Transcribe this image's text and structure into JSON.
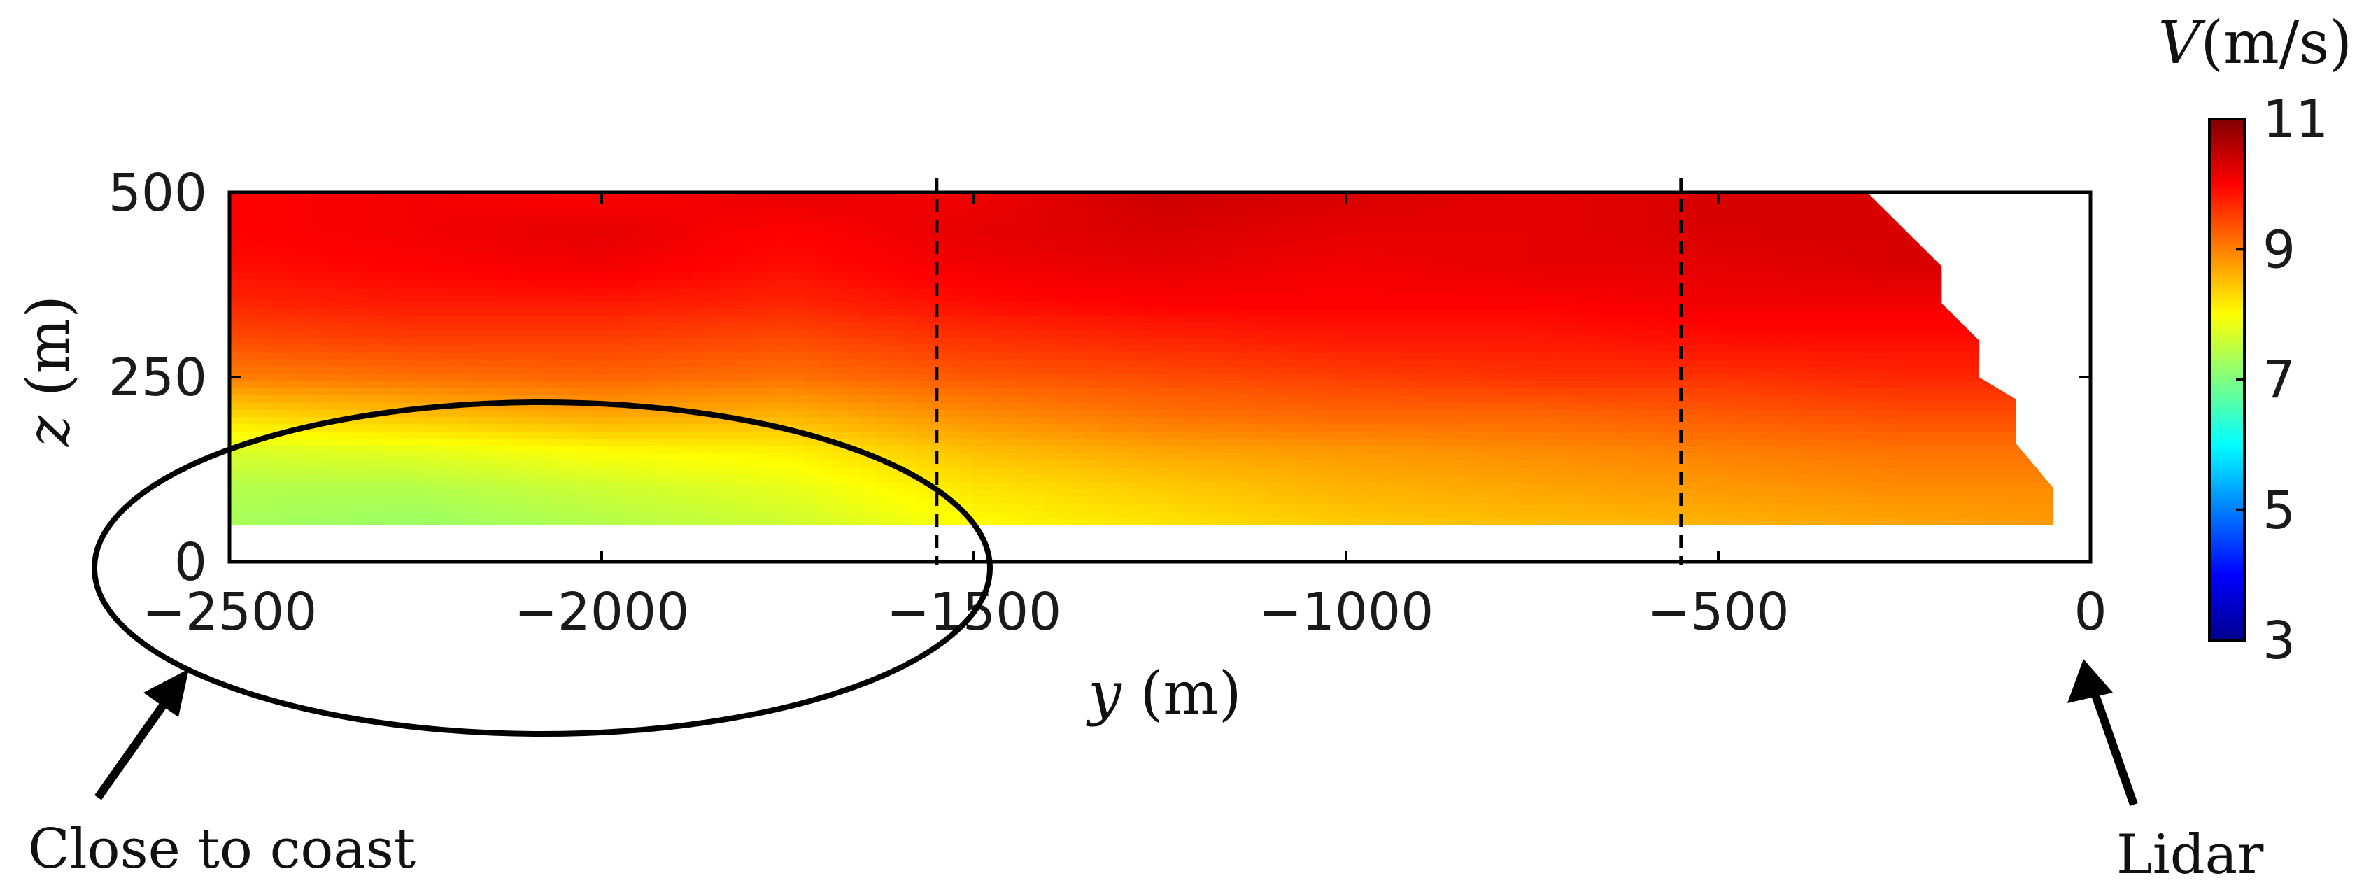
{
  "chart_data": {
    "type": "heatmap",
    "title": "",
    "xlabel": {
      "var": "y",
      "unit": " (m)"
    },
    "ylabel": {
      "var": "z",
      "unit": " (m)"
    },
    "xlim": [
      -2500,
      0
    ],
    "ylim": [
      0,
      500
    ],
    "x_ticks": [
      "-2500",
      "-2000",
      "-1500",
      "-1000",
      "-500",
      "0"
    ],
    "x_tick_values": [
      -2500,
      -2000,
      -1500,
      -1000,
      -500,
      0
    ],
    "y_ticks": [
      "0",
      "250",
      "500"
    ],
    "y_tick_values": [
      0,
      250,
      500
    ],
    "colorbar": {
      "label": {
        "var": "V",
        "unit": "(m/s)"
      },
      "range": [
        3,
        11
      ],
      "ticks": [
        "3",
        "5",
        "7",
        "9",
        "11"
      ],
      "tick_values": [
        3,
        5,
        7,
        9,
        11
      ],
      "colormap": "jet"
    },
    "data_extent": {
      "y_min": -2500,
      "z_min": 50,
      "z_max": 500
    },
    "data_right_boundary": [
      {
        "z": 500,
        "y": -300
      },
      {
        "z": 400,
        "y": -200
      },
      {
        "z": 350,
        "y": -200
      },
      {
        "z": 300,
        "y": -150
      },
      {
        "z": 250,
        "y": -150
      },
      {
        "z": 220,
        "y": -100
      },
      {
        "z": 160,
        "y": -100
      },
      {
        "z": 100,
        "y": -50
      },
      {
        "z": 50,
        "y": -50
      }
    ],
    "z_levels": [
      50,
      100,
      150,
      200,
      250,
      300,
      350,
      400,
      450,
      500
    ],
    "y_nodes": [
      -2500,
      -2250,
      -2000,
      -1750,
      -1500,
      -1250,
      -1000,
      -750,
      -500,
      -250,
      -50
    ],
    "velocity_grid": [
      [
        7.3,
        7.2,
        7.4,
        7.6,
        8.0,
        8.2,
        8.4,
        8.5,
        8.6,
        8.7,
        8.8
      ],
      [
        7.4,
        7.4,
        7.6,
        7.8,
        8.2,
        8.4,
        8.6,
        8.7,
        8.8,
        8.9,
        8.9
      ],
      [
        7.7,
        7.8,
        8.0,
        8.1,
        8.5,
        8.7,
        8.8,
        8.9,
        9.0,
        9.1,
        9.1
      ],
      [
        8.3,
        8.5,
        8.7,
        8.6,
        8.9,
        9.1,
        9.2,
        9.2,
        9.3,
        9.4,
        9.4
      ],
      [
        9.0,
        9.1,
        9.2,
        9.1,
        9.3,
        9.4,
        9.5,
        9.6,
        9.6,
        9.7,
        9.7
      ],
      [
        9.4,
        9.5,
        9.5,
        9.4,
        9.6,
        9.7,
        9.8,
        9.8,
        9.9,
        9.9,
        9.9
      ],
      [
        9.7,
        9.8,
        9.8,
        9.7,
        9.9,
        10.0,
        10.0,
        10.0,
        10.1,
        10.1,
        10.1
      ],
      [
        9.9,
        10.0,
        10.1,
        9.9,
        10.1,
        10.2,
        10.1,
        10.2,
        10.2,
        10.3,
        10.3
      ],
      [
        10.0,
        10.1,
        10.2,
        10.0,
        10.2,
        10.3,
        10.2,
        10.2,
        10.3,
        10.3,
        10.3
      ],
      [
        10.0,
        10.1,
        10.0,
        10.2,
        10.1,
        10.4,
        10.3,
        10.2,
        10.3,
        10.3,
        10.3
      ]
    ],
    "vertical_markers": [
      -1550,
      -550
    ],
    "annotations": {
      "coast": "Close to coast",
      "lidar": "Lidar"
    },
    "grid": false,
    "legend": "none"
  }
}
